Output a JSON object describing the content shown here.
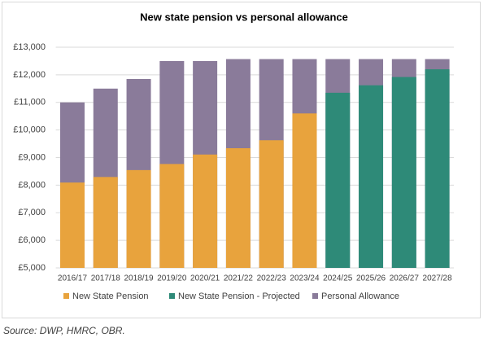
{
  "chart_data": {
    "type": "bar",
    "overlap": true,
    "title": "New state pension vs personal allowance",
    "source": "Source: DWP, HMRC, OBR.",
    "categories": [
      "2016/17",
      "2017/18",
      "2018/19",
      "2019/20",
      "2020/21",
      "2021/22",
      "2022/23",
      "2023/24",
      "2024/25",
      "2025/26",
      "2026/27",
      "2027/28"
    ],
    "series": [
      {
        "name": "Personal Allowance",
        "color": "#8a7b9a",
        "layer": "back",
        "values": [
          11000,
          11500,
          11850,
          12500,
          12500,
          12570,
          12570,
          12570,
          12570,
          12570,
          12570,
          12570
        ]
      },
      {
        "name": "New State Pension",
        "color": "#e8a33d",
        "layer": "front",
        "values": [
          8094,
          8296,
          8546,
          8767,
          9110,
          9339,
          9628,
          10600,
          null,
          null,
          null,
          null
        ]
      },
      {
        "name": "New State Pension - Projected",
        "color": "#2e8a78",
        "layer": "front",
        "values": [
          null,
          null,
          null,
          null,
          null,
          null,
          null,
          null,
          11350,
          11620,
          11920,
          12200
        ]
      }
    ],
    "legend_order": [
      1,
      2,
      0
    ],
    "ylim": [
      5000,
      13000
    ],
    "yticks": [
      {
        "value": 5000,
        "label": "£5,000"
      },
      {
        "value": 6000,
        "label": "£6,000"
      },
      {
        "value": 7000,
        "label": "£7,000"
      },
      {
        "value": 8000,
        "label": "£8,000"
      },
      {
        "value": 9000,
        "label": "£9,000"
      },
      {
        "value": 10000,
        "label": "£10,000"
      },
      {
        "value": 11000,
        "label": "£11,000"
      },
      {
        "value": 12000,
        "label": "£12,000"
      },
      {
        "value": 13000,
        "label": "£13,000"
      }
    ],
    "grid": true
  }
}
